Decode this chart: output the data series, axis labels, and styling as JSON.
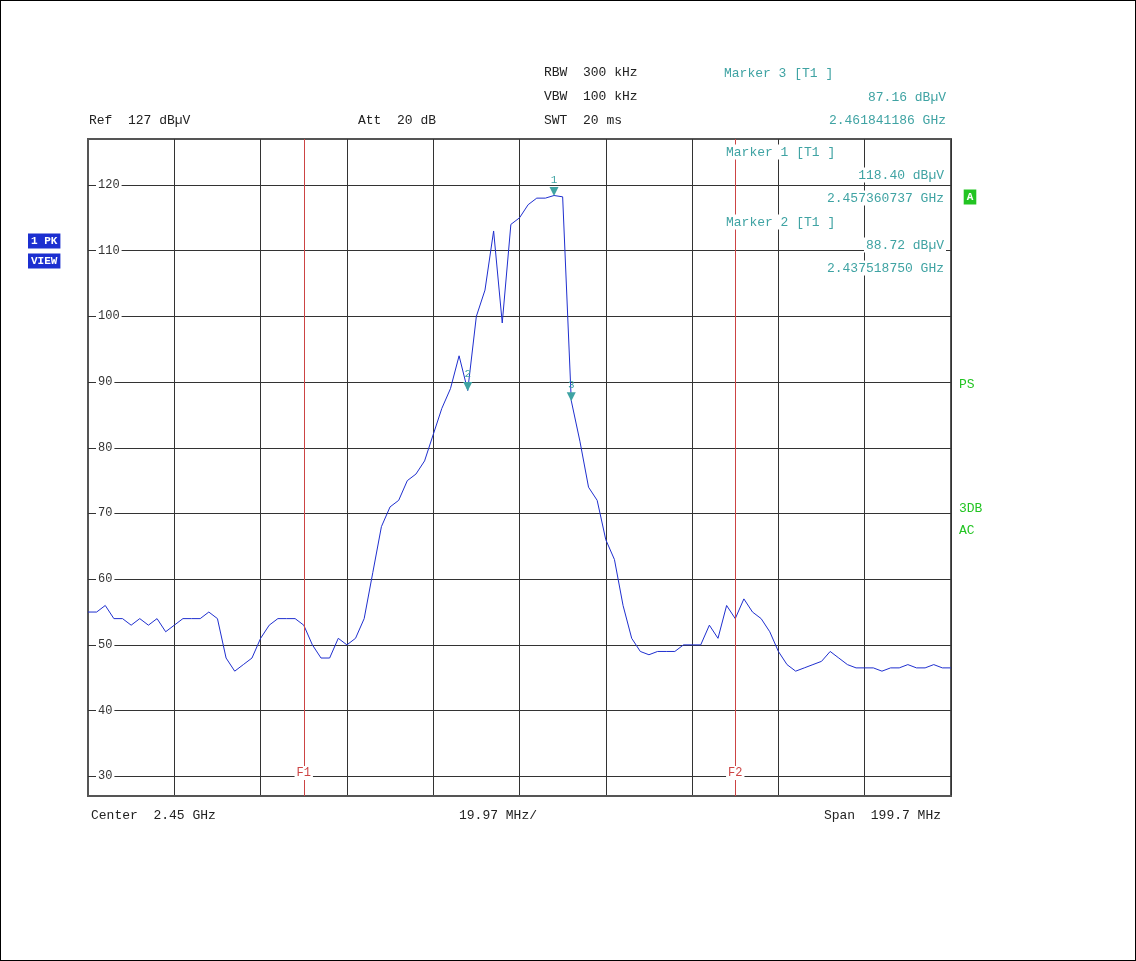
{
  "chart_data": {
    "type": "line",
    "categories": [
      null,
      null,
      null,
      null,
      null,
      null,
      null,
      null,
      null,
      null,
      null,
      null,
      null,
      null,
      null,
      null,
      null,
      null,
      null,
      null,
      null,
      null,
      null,
      null,
      null,
      null,
      null,
      null,
      null,
      null,
      null,
      null,
      null,
      null,
      null,
      null,
      null,
      null,
      null,
      null,
      null,
      null,
      null,
      null,
      null,
      null,
      null,
      null,
      null,
      null,
      null,
      null,
      null,
      null,
      null,
      null,
      null,
      null,
      null,
      null,
      null,
      null,
      null,
      null,
      null,
      null,
      null,
      null,
      null,
      null,
      null,
      null,
      null,
      null,
      null,
      null,
      null,
      null,
      null,
      null,
      null,
      null,
      null,
      null,
      null,
      null,
      null,
      null,
      null,
      null,
      null,
      null,
      null,
      null,
      null,
      null,
      null,
      null,
      null,
      null,
      null
    ],
    "series": [
      {
        "color": "#1f2fcf",
        "values": [
          55,
          55,
          56,
          54,
          54,
          53,
          54,
          53,
          54,
          52,
          53,
          54,
          54,
          54,
          55,
          54,
          48,
          46,
          47,
          48,
          51,
          53,
          54,
          54,
          54,
          53,
          50,
          48,
          48,
          51,
          50,
          51,
          54,
          61,
          68,
          71,
          72,
          75,
          76,
          78,
          82,
          86,
          89,
          94,
          88.72,
          100,
          104,
          113,
          99,
          114,
          115,
          117,
          118,
          118,
          118.4,
          118.2,
          87.16,
          81,
          74,
          72,
          66,
          63,
          56,
          51,
          49,
          48.5,
          49,
          49,
          49,
          50,
          50,
          50,
          53,
          51,
          56,
          54,
          57,
          55,
          54,
          52,
          49,
          47,
          46,
          46.5,
          47,
          47.5,
          49,
          48,
          47,
          46.5,
          46.5,
          46.5,
          46,
          46.5,
          46.5,
          47,
          46.5,
          46.5,
          47,
          46.5,
          46.5
        ]
      }
    ],
    "ylim": [
      27,
      127
    ],
    "yticks": [
      30,
      40,
      50,
      60,
      70,
      80,
      90,
      100,
      110,
      120
    ],
    "tick_labels": "y",
    "grid": true,
    "annotations": [
      "Ref  127 dBµV",
      "Att  20 dB",
      "RBW  300 kHz",
      "VBW  100 kHz",
      "SWT  20 ms",
      "Marker 3 [T1 ]",
      "87.16 dBµV",
      "2.461841186 GHz",
      "Marker 1 [T1 ]",
      "118.40 dBµV",
      "2.457360737 GHz",
      "Marker 2 [T1 ]",
      "88.72 dBµV",
      "2.437518750 GHz",
      "Center  2.45 GHz",
      "19.97 MHz/",
      "Span  199.7 MHz",
      "1 PK",
      "VIEW",
      "A",
      "PS",
      "3DB",
      "AC",
      "F1",
      "F2",
      {
        "text": "1",
        "y": 118.4
      },
      {
        "text": "2",
        "y": 88.72
      },
      {
        "text": "3",
        "y": 87.16
      }
    ]
  }
}
